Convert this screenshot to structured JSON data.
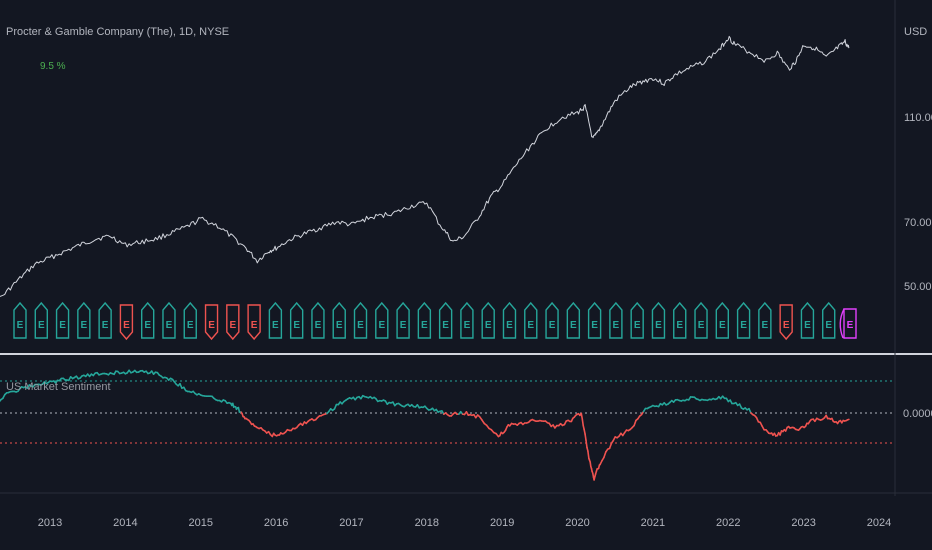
{
  "header": {
    "title": "Procter & Gamble Company (The), 1D, NYSE",
    "change": "9.5 %"
  },
  "indicator": {
    "title": "US Market Sentiment"
  },
  "colors": {
    "background": "#131722",
    "price": "#d1d4dc",
    "bullish": "#26a69a",
    "bearish": "#ef5350",
    "split": "#e040fb",
    "grid": "#2a2e39"
  },
  "chart_data": [
    {
      "type": "line",
      "title": "Procter & Gamble Company (The), 1D, NYSE",
      "y_unit": "USD",
      "yticks": [
        "50.00",
        "70.00",
        "110.00"
      ],
      "xticks": [
        "2013",
        "2014",
        "2015",
        "2016",
        "2017",
        "2018",
        "2019",
        "2020",
        "2021",
        "2022",
        "2023",
        "2024"
      ],
      "scale": "log",
      "series": [
        {
          "points": [
            [
              2012.2,
              45
            ],
            [
              2012.4,
              48
            ],
            [
              2012.6,
              52
            ],
            [
              2012.8,
              56
            ],
            [
              2013.0,
              58
            ],
            [
              2013.2,
              60
            ],
            [
              2013.4,
              62
            ],
            [
              2013.6,
              64
            ],
            [
              2013.8,
              65
            ],
            [
              2014.0,
              62
            ],
            [
              2014.2,
              63
            ],
            [
              2014.4,
              64
            ],
            [
              2014.6,
              66
            ],
            [
              2014.8,
              68
            ],
            [
              2015.0,
              71
            ],
            [
              2015.2,
              69
            ],
            [
              2015.4,
              65
            ],
            [
              2015.6,
              61
            ],
            [
              2015.75,
              57
            ],
            [
              2015.9,
              60
            ],
            [
              2016.0,
              61
            ],
            [
              2016.2,
              64
            ],
            [
              2016.4,
              66
            ],
            [
              2016.6,
              68
            ],
            [
              2016.8,
              70
            ],
            [
              2017.0,
              69
            ],
            [
              2017.2,
              71
            ],
            [
              2017.4,
              72
            ],
            [
              2017.6,
              73
            ],
            [
              2017.8,
              75
            ],
            [
              2018.0,
              76
            ],
            [
              2018.2,
              68
            ],
            [
              2018.35,
              63
            ],
            [
              2018.5,
              65
            ],
            [
              2018.7,
              72
            ],
            [
              2018.85,
              78
            ],
            [
              2019.0,
              82
            ],
            [
              2019.2,
              90
            ],
            [
              2019.4,
              98
            ],
            [
              2019.6,
              105
            ],
            [
              2019.8,
              110
            ],
            [
              2020.0,
              112
            ],
            [
              2020.1,
              115
            ],
            [
              2020.2,
              100
            ],
            [
              2020.25,
              102
            ],
            [
              2020.35,
              108
            ],
            [
              2020.5,
              118
            ],
            [
              2020.7,
              125
            ],
            [
              2020.85,
              128
            ],
            [
              2021.0,
              130
            ],
            [
              2021.15,
              127
            ],
            [
              2021.3,
              132
            ],
            [
              2021.5,
              136
            ],
            [
              2021.7,
              140
            ],
            [
              2021.9,
              148
            ],
            [
              2022.0,
              155
            ],
            [
              2022.1,
              150
            ],
            [
              2022.3,
              145
            ],
            [
              2022.5,
              140
            ],
            [
              2022.65,
              145
            ],
            [
              2022.8,
              135
            ],
            [
              2022.9,
              140
            ],
            [
              2023.0,
              150
            ],
            [
              2023.15,
              148
            ],
            [
              2023.3,
              142
            ],
            [
              2023.45,
              148
            ],
            [
              2023.55,
              152
            ],
            [
              2023.6,
              148
            ]
          ]
        }
      ],
      "event_markers": {
        "earnings_letter": "E",
        "split_letter": "S",
        "count": 40,
        "bearish_indices": [
          5,
          9,
          10,
          11,
          36
        ],
        "split_index": 39
      }
    },
    {
      "type": "area",
      "title": "US Market Sentiment",
      "baseline_label": "0.0000",
      "xticks": [
        "2013",
        "2014",
        "2015",
        "2016",
        "2017",
        "2018",
        "2019",
        "2020",
        "2021",
        "2022",
        "2023",
        "2024"
      ],
      "levels": {
        "upper": 0.4,
        "zero": 0.0,
        "lower": -0.4
      },
      "ylim": [
        -0.9,
        0.65
      ],
      "series": [
        {
          "points": [
            [
              2012.2,
              0.05
            ],
            [
              2012.4,
              0.22
            ],
            [
              2012.6,
              0.3
            ],
            [
              2012.8,
              0.35
            ],
            [
              2013.0,
              0.38
            ],
            [
              2013.2,
              0.42
            ],
            [
              2013.4,
              0.45
            ],
            [
              2013.6,
              0.48
            ],
            [
              2013.8,
              0.5
            ],
            [
              2014.0,
              0.51
            ],
            [
              2014.2,
              0.53
            ],
            [
              2014.4,
              0.5
            ],
            [
              2014.6,
              0.42
            ],
            [
              2014.8,
              0.3
            ],
            [
              2015.0,
              0.22
            ],
            [
              2015.2,
              0.18
            ],
            [
              2015.4,
              0.12
            ],
            [
              2015.5,
              0.05
            ],
            [
              2015.6,
              -0.08
            ],
            [
              2015.75,
              -0.18
            ],
            [
              2015.95,
              -0.28
            ],
            [
              2016.1,
              -0.25
            ],
            [
              2016.3,
              -0.15
            ],
            [
              2016.5,
              -0.08
            ],
            [
              2016.7,
              0.02
            ],
            [
              2016.9,
              0.15
            ],
            [
              2017.1,
              0.2
            ],
            [
              2017.3,
              0.18
            ],
            [
              2017.5,
              0.12
            ],
            [
              2017.7,
              0.1
            ],
            [
              2017.9,
              0.08
            ],
            [
              2018.1,
              0.04
            ],
            [
              2018.3,
              -0.02
            ],
            [
              2018.5,
              0.0
            ],
            [
              2018.7,
              -0.05
            ],
            [
              2018.95,
              -0.3
            ],
            [
              2019.1,
              -0.15
            ],
            [
              2019.3,
              -0.12
            ],
            [
              2019.5,
              -0.08
            ],
            [
              2019.7,
              -0.18
            ],
            [
              2019.9,
              -0.1
            ],
            [
              2020.05,
              0.0
            ],
            [
              2020.15,
              -0.55
            ],
            [
              2020.22,
              -0.82
            ],
            [
              2020.3,
              -0.62
            ],
            [
              2020.5,
              -0.32
            ],
            [
              2020.7,
              -0.2
            ],
            [
              2020.9,
              0.05
            ],
            [
              2021.1,
              0.1
            ],
            [
              2021.3,
              0.15
            ],
            [
              2021.5,
              0.18
            ],
            [
              2021.7,
              0.17
            ],
            [
              2021.9,
              0.2
            ],
            [
              2022.1,
              0.12
            ],
            [
              2022.3,
              0.02
            ],
            [
              2022.5,
              -0.22
            ],
            [
              2022.65,
              -0.28
            ],
            [
              2022.8,
              -0.18
            ],
            [
              2022.95,
              -0.2
            ],
            [
              2023.1,
              -0.1
            ],
            [
              2023.3,
              -0.05
            ],
            [
              2023.45,
              -0.12
            ],
            [
              2023.6,
              -0.08
            ]
          ]
        }
      ]
    }
  ]
}
